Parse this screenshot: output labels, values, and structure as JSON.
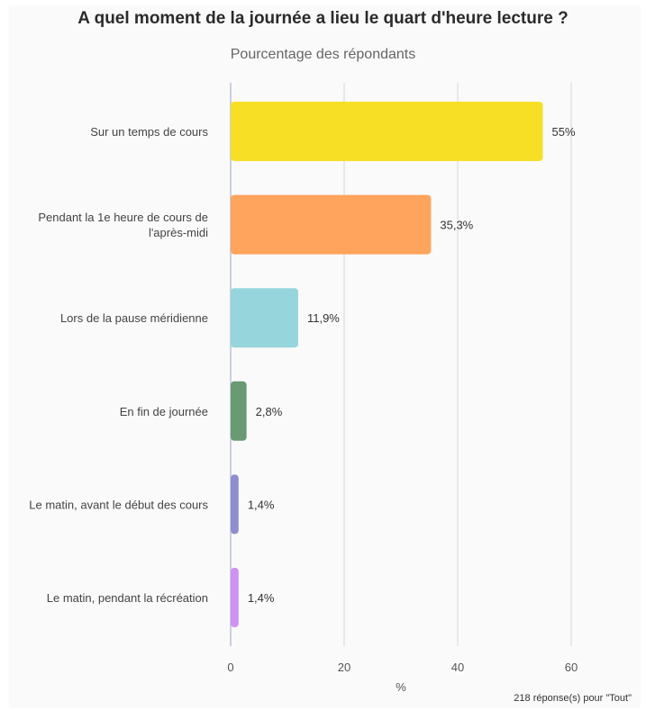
{
  "chart_data": {
    "type": "bar",
    "orientation": "horizontal",
    "title": "A quel moment de la journée a lieu le quart d'heure lecture ?",
    "subtitle": "Pourcentage des répondants",
    "xlabel": "%",
    "xlim": [
      0,
      70
    ],
    "xticks": [
      0,
      20,
      40,
      60
    ],
    "grid": true,
    "categories": [
      [
        "Sur un temps de cours"
      ],
      [
        "Pendant la 1e heure de cours de",
        "l'après-midi"
      ],
      [
        "Lors de la pause méridienne"
      ],
      [
        "En fin de journée"
      ],
      [
        "Le matin, avant le début des cours"
      ],
      [
        "Le matin, pendant la récréation"
      ]
    ],
    "values": [
      55,
      35.3,
      11.9,
      2.8,
      1.4,
      1.4
    ],
    "value_labels": [
      "55%",
      "35,3%",
      "11,9%",
      "2,8%",
      "1,4%",
      "1,4%"
    ],
    "colors": [
      "#f7df26",
      "#ffa45c",
      "#96d5dc",
      "#6a9a72",
      "#8f8ecf",
      "#cf91f2"
    ]
  },
  "footnote": "218 réponse(s) pour \"Tout\""
}
